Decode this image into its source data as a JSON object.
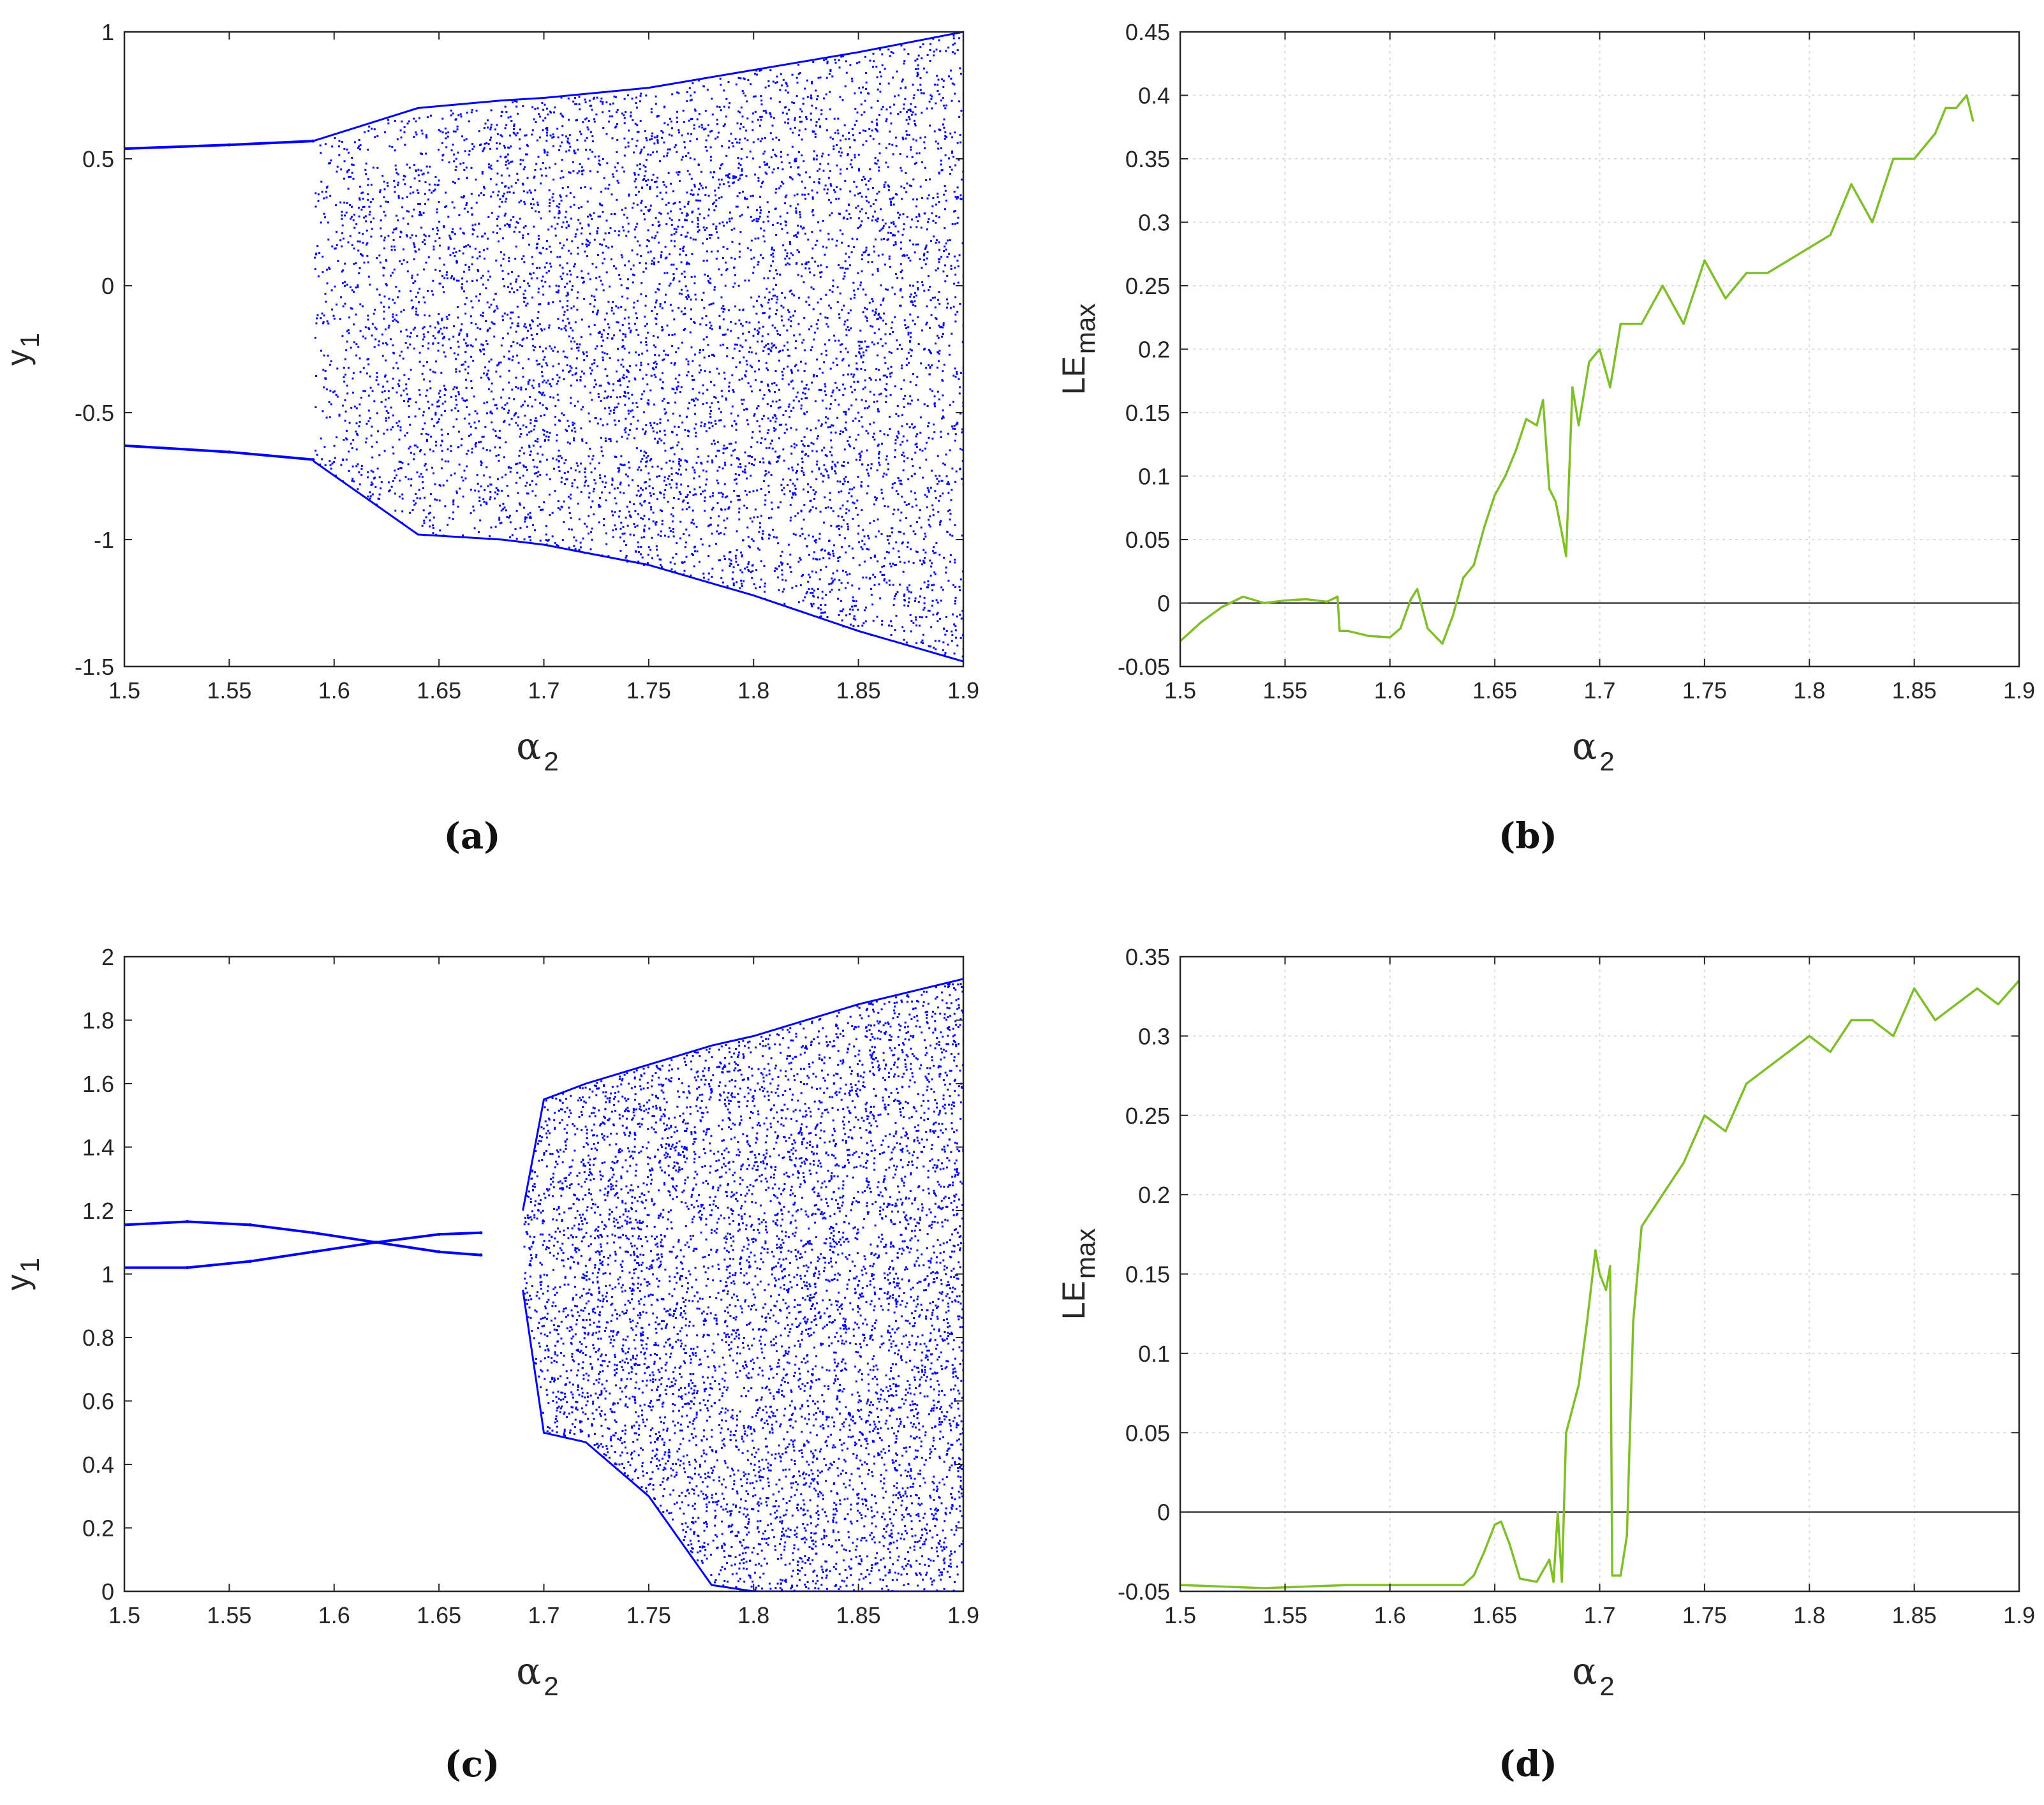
{
  "figure": {
    "panels": [
      "a",
      "b",
      "c",
      "d"
    ]
  },
  "chart_data": [
    {
      "id": "a",
      "type": "scatter",
      "caption": "(a)",
      "title": "",
      "xlabel": "α",
      "xlabel_sub": "2",
      "ylabel": "y",
      "ylabel_sub": "1",
      "xlim": [
        1.5,
        1.9
      ],
      "ylim": [
        -1.5,
        1
      ],
      "xticks": [
        1.5,
        1.55,
        1.6,
        1.65,
        1.7,
        1.75,
        1.8,
        1.85,
        1.9
      ],
      "xtick_labels": [
        "1.5",
        "1.55",
        "1.6",
        "1.65",
        "1.7",
        "1.75",
        "1.8",
        "1.85",
        "1.9"
      ],
      "yticks": [
        -1.5,
        -1,
        -0.5,
        0,
        0.5,
        1
      ],
      "ytick_labels": [
        "-1.5",
        "-1",
        "-0.5",
        "0",
        "0.5",
        "1"
      ],
      "grid": false,
      "color": "#0000ff",
      "description": "bifurcation diagram: two period-1 branches, period doubling near 1.59, chaotic band widening to 1.9",
      "series": [
        {
          "name": "upper branch",
          "x": [
            1.5,
            1.55,
            1.59
          ],
          "y": [
            0.54,
            0.555,
            0.57
          ]
        },
        {
          "name": "lower branch",
          "x": [
            1.5,
            1.55,
            1.59
          ],
          "y": [
            -0.63,
            -0.655,
            -0.685
          ]
        }
      ],
      "chaotic_band": {
        "x": [
          1.59,
          1.64,
          1.68,
          1.7,
          1.75,
          1.8,
          1.85,
          1.9
        ],
        "ymin": [
          -0.69,
          -0.98,
          -1.0,
          -1.02,
          -1.1,
          -1.22,
          -1.36,
          -1.48
        ],
        "ymax": [
          0.57,
          0.7,
          0.73,
          0.74,
          0.78,
          0.85,
          0.92,
          1.0
        ]
      }
    },
    {
      "id": "b",
      "type": "line",
      "caption": "(b)",
      "title": "",
      "xlabel": "α",
      "xlabel_sub": "2",
      "ylabel": "LE",
      "ylabel_sub": "max",
      "xlim": [
        1.5,
        1.9
      ],
      "ylim": [
        -0.05,
        0.45
      ],
      "xticks": [
        1.5,
        1.55,
        1.6,
        1.65,
        1.7,
        1.75,
        1.8,
        1.85,
        1.9
      ],
      "xtick_labels": [
        "1.5",
        "1.55",
        "1.6",
        "1.65",
        "1.7",
        "1.75",
        "1.8",
        "1.85",
        "1.9"
      ],
      "yticks": [
        -0.05,
        0,
        0.05,
        0.1,
        0.15,
        0.2,
        0.25,
        0.3,
        0.35,
        0.4,
        0.45
      ],
      "ytick_labels": [
        "-0.05",
        "0",
        "0.05",
        "0.1",
        "0.15",
        "0.2",
        "0.25",
        "0.3",
        "0.35",
        "0.4",
        "0.45"
      ],
      "grid": true,
      "zero_line": true,
      "color": "#7fbf2a",
      "x": [
        1.5,
        1.51,
        1.52,
        1.53,
        1.54,
        1.55,
        1.56,
        1.57,
        1.575,
        1.576,
        1.58,
        1.59,
        1.6,
        1.605,
        1.61,
        1.613,
        1.618,
        1.625,
        1.63,
        1.635,
        1.64,
        1.645,
        1.65,
        1.655,
        1.66,
        1.665,
        1.67,
        1.673,
        1.676,
        1.679,
        1.682,
        1.684,
        1.687,
        1.69,
        1.695,
        1.7,
        1.705,
        1.71,
        1.72,
        1.73,
        1.74,
        1.75,
        1.76,
        1.77,
        1.78,
        1.79,
        1.8,
        1.81,
        1.82,
        1.83,
        1.84,
        1.85,
        1.86,
        1.865,
        1.87,
        1.875,
        1.878
      ],
      "y": [
        -0.03,
        -0.015,
        -0.003,
        0.005,
        0.0,
        0.002,
        0.003,
        0.001,
        0.005,
        -0.022,
        -0.022,
        -0.026,
        -0.027,
        -0.02,
        0.003,
        0.011,
        -0.02,
        -0.032,
        -0.01,
        0.02,
        0.03,
        0.06,
        0.085,
        0.1,
        0.12,
        0.145,
        0.14,
        0.16,
        0.09,
        0.08,
        0.055,
        0.037,
        0.17,
        0.14,
        0.19,
        0.2,
        0.17,
        0.22,
        0.22,
        0.25,
        0.22,
        0.27,
        0.24,
        0.26,
        0.26,
        0.27,
        0.28,
        0.29,
        0.33,
        0.3,
        0.35,
        0.35,
        0.37,
        0.39,
        0.39,
        0.4,
        0.38
      ]
    },
    {
      "id": "c",
      "type": "scatter",
      "caption": "(c)",
      "title": "",
      "xlabel": "α",
      "xlabel_sub": "2",
      "ylabel": "y",
      "ylabel_sub": "1",
      "xlim": [
        1.5,
        1.9
      ],
      "ylim": [
        0,
        2
      ],
      "xticks": [
        1.5,
        1.55,
        1.6,
        1.65,
        1.7,
        1.75,
        1.8,
        1.85,
        1.9
      ],
      "xtick_labels": [
        "1.5",
        "1.55",
        "1.6",
        "1.65",
        "1.7",
        "1.75",
        "1.8",
        "1.85",
        "1.9"
      ],
      "yticks": [
        0,
        0.2,
        0.4,
        0.6,
        0.8,
        1,
        1.2,
        1.4,
        1.6,
        1.8,
        2
      ],
      "ytick_labels": [
        "0",
        "0.2",
        "0.4",
        "0.6",
        "0.8",
        "1",
        "1.2",
        "1.4",
        "1.6",
        "1.8",
        "2"
      ],
      "grid": false,
      "color": "#0000ff",
      "description": "bifurcation diagram: two crossing period-2 curves, doubling cascade near 1.65-1.69, chaotic band from 1.69 to 1.9",
      "series": [
        {
          "name": "branch 1",
          "x": [
            1.5,
            1.53,
            1.56,
            1.59,
            1.62,
            1.65,
            1.67
          ],
          "y": [
            1.155,
            1.165,
            1.155,
            1.13,
            1.1,
            1.07,
            1.06
          ]
        },
        {
          "name": "branch 2",
          "x": [
            1.5,
            1.53,
            1.56,
            1.59,
            1.62,
            1.65,
            1.67
          ],
          "y": [
            1.02,
            1.02,
            1.04,
            1.07,
            1.1,
            1.125,
            1.13
          ]
        }
      ],
      "chaotic_band": {
        "x": [
          1.69,
          1.7,
          1.72,
          1.75,
          1.78,
          1.8,
          1.85,
          1.9
        ],
        "ymin": [
          0.95,
          0.5,
          0.47,
          0.3,
          0.02,
          0.0,
          0.0,
          0.0
        ],
        "ymax": [
          1.2,
          1.55,
          1.6,
          1.66,
          1.72,
          1.75,
          1.85,
          1.93
        ]
      }
    },
    {
      "id": "d",
      "type": "line",
      "caption": "(d)",
      "title": "",
      "xlabel": "α",
      "xlabel_sub": "2",
      "ylabel": "LE",
      "ylabel_sub": "max",
      "xlim": [
        1.5,
        1.9
      ],
      "ylim": [
        -0.05,
        0.35
      ],
      "xticks": [
        1.5,
        1.55,
        1.6,
        1.65,
        1.7,
        1.75,
        1.8,
        1.85,
        1.9
      ],
      "xtick_labels": [
        "1.5",
        "1.55",
        "1.6",
        "1.65",
        "1.7",
        "1.75",
        "1.8",
        "1.85",
        "1.9"
      ],
      "yticks": [
        -0.05,
        0,
        0.05,
        0.1,
        0.15,
        0.2,
        0.25,
        0.3,
        0.35
      ],
      "ytick_labels": [
        "-0.05",
        "0",
        "0.05",
        "0.1",
        "0.15",
        "0.2",
        "0.25",
        "0.3",
        "0.35"
      ],
      "grid": true,
      "zero_line": true,
      "color": "#7fbf2a",
      "x": [
        1.5,
        1.52,
        1.54,
        1.56,
        1.58,
        1.6,
        1.62,
        1.635,
        1.64,
        1.645,
        1.65,
        1.653,
        1.657,
        1.662,
        1.67,
        1.676,
        1.678,
        1.68,
        1.682,
        1.684,
        1.686,
        1.69,
        1.694,
        1.698,
        1.7,
        1.703,
        1.705,
        1.706,
        1.71,
        1.713,
        1.716,
        1.72,
        1.73,
        1.74,
        1.75,
        1.76,
        1.77,
        1.78,
        1.79,
        1.8,
        1.81,
        1.82,
        1.83,
        1.84,
        1.85,
        1.86,
        1.87,
        1.88,
        1.89,
        1.9
      ],
      "y": [
        -0.046,
        -0.047,
        -0.048,
        -0.047,
        -0.046,
        -0.046,
        -0.046,
        -0.046,
        -0.04,
        -0.025,
        -0.008,
        -0.006,
        -0.02,
        -0.042,
        -0.044,
        -0.03,
        -0.044,
        0.0,
        -0.044,
        0.05,
        0.06,
        0.08,
        0.12,
        0.165,
        0.15,
        0.14,
        0.155,
        -0.04,
        -0.04,
        -0.015,
        0.12,
        0.18,
        0.2,
        0.22,
        0.25,
        0.24,
        0.27,
        0.28,
        0.29,
        0.3,
        0.29,
        0.31,
        0.31,
        0.3,
        0.33,
        0.31,
        0.32,
        0.33,
        0.32,
        0.335
      ]
    }
  ]
}
